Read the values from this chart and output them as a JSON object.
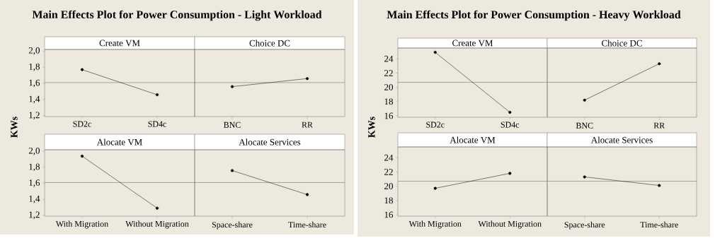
{
  "chart_data": [
    {
      "type": "line",
      "title": "Main Effects Plot for Power Consumption - Light Workload",
      "subtitle": "Create VM",
      "ylabel": "KWs",
      "categories": [
        "SD2c",
        "SD4c"
      ],
      "values": [
        1.77,
        1.46
      ],
      "color": "#000000",
      "marker": "circle",
      "ylim": [
        1.19,
        2.02
      ],
      "yticks": [
        {
          "value": 1.2,
          "label": "1,2"
        },
        {
          "value": 1.4,
          "label": "1,4"
        },
        {
          "value": 1.6,
          "label": "1,6"
        },
        {
          "value": 1.8,
          "label": "1,8"
        },
        {
          "value": 2.0,
          "label": "2,0"
        }
      ],
      "ref_lines": [
        {
          "axis": "y",
          "value": 1.61
        }
      ]
    },
    {
      "type": "line",
      "subtitle": "Choice DC",
      "categories": [
        "BNC",
        "RR"
      ],
      "values": [
        1.56,
        1.66
      ],
      "color": "#000000",
      "marker": "circle",
      "ylim": [
        1.19,
        2.02
      ],
      "tick_labels": "x",
      "ref_lines": [
        {
          "axis": "y",
          "value": 1.61
        }
      ]
    },
    {
      "type": "line",
      "subtitle": "Alocate VM",
      "categories": [
        "With Migration",
        "Without Migration"
      ],
      "values": [
        1.94,
        1.29
      ],
      "color": "#000000",
      "marker": "circle",
      "ylim": [
        1.19,
        2.02
      ],
      "yticks": [
        {
          "value": 1.2,
          "label": "1,2"
        },
        {
          "value": 1.4,
          "label": "1,4"
        },
        {
          "value": 1.6,
          "label": "1,6"
        },
        {
          "value": 1.8,
          "label": "1,8"
        },
        {
          "value": 2.0,
          "label": "2,0"
        }
      ],
      "ref_lines": [
        {
          "axis": "y",
          "value": 1.61
        }
      ]
    },
    {
      "type": "line",
      "subtitle": "Alocate Services",
      "categories": [
        "Space-share",
        "Time-share"
      ],
      "values": [
        1.76,
        1.46
      ],
      "color": "#000000",
      "marker": "circle",
      "ylim": [
        1.19,
        2.02
      ],
      "tick_labels": "x",
      "ref_lines": [
        {
          "axis": "y",
          "value": 1.61
        }
      ]
    },
    {
      "type": "line",
      "title": "Main Effects Plot for Power Consumption - Heavy Workload",
      "subtitle": "Create VM",
      "ylabel": "KWs",
      "categories": [
        "SD2c",
        "SD4c"
      ],
      "values": [
        24.9,
        16.5
      ],
      "color": "#000000",
      "marker": "circle",
      "ylim": [
        15.8,
        25.5
      ],
      "yticks": [
        16,
        18,
        20,
        22,
        24
      ],
      "ref_lines": [
        {
          "axis": "y",
          "value": 20.7
        }
      ]
    },
    {
      "type": "line",
      "subtitle": "Choice DC",
      "categories": [
        "BNC",
        "RR"
      ],
      "values": [
        18.2,
        23.3
      ],
      "color": "#000000",
      "marker": "circle",
      "ylim": [
        15.8,
        25.5
      ],
      "tick_labels": "x",
      "ref_lines": [
        {
          "axis": "y",
          "value": 20.7
        }
      ]
    },
    {
      "type": "line",
      "subtitle": "Alocate VM",
      "categories": [
        "With Migration",
        "Without Migration"
      ],
      "values": [
        19.7,
        21.8
      ],
      "color": "#000000",
      "marker": "circle",
      "ylim": [
        15.8,
        25.5
      ],
      "yticks": [
        16,
        18,
        20,
        22,
        24
      ],
      "ref_lines": [
        {
          "axis": "y",
          "value": 20.7
        }
      ]
    },
    {
      "type": "line",
      "subtitle": "Alocate Services",
      "categories": [
        "Space-share",
        "Time-share"
      ],
      "values": [
        21.3,
        20.1
      ],
      "color": "#000000",
      "marker": "circle",
      "ylim": [
        15.8,
        25.5
      ],
      "tick_labels": "x",
      "ref_lines": [
        {
          "axis": "y",
          "value": 20.7
        }
      ]
    }
  ]
}
